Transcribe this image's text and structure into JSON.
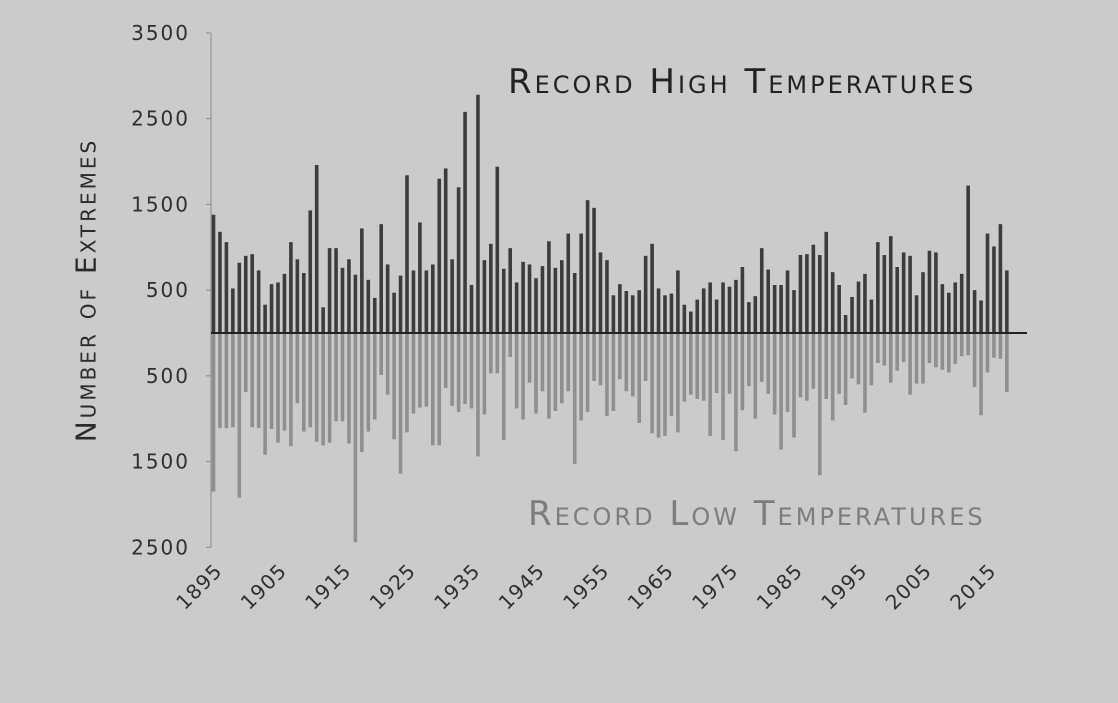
{
  "chart_data": {
    "type": "bar",
    "title_high": "Record High Temperatures",
    "title_low": "Record Low Temperatures",
    "ylabel": "Number of Extremes",
    "ylim": [
      -2500,
      3500
    ],
    "y_ticks": [
      {
        "value": 3500,
        "label": "3500"
      },
      {
        "value": 2500,
        "label": "2500"
      },
      {
        "value": 1500,
        "label": "1500"
      },
      {
        "value": 500,
        "label": "500"
      },
      {
        "value": -500,
        "label": "500"
      },
      {
        "value": -1500,
        "label": "1500"
      },
      {
        "value": -2500,
        "label": "2500"
      }
    ],
    "x_ticks": [
      "1895",
      "1905",
      "1915",
      "1925",
      "1935",
      "1945",
      "1955",
      "1965",
      "1975",
      "1985",
      "1995",
      "2005",
      "2015"
    ],
    "x_tick_years": [
      1895,
      1905,
      1915,
      1925,
      1935,
      1945,
      1955,
      1965,
      1975,
      1985,
      1995,
      2005,
      2015
    ],
    "colors": {
      "high": "#3c3c3c",
      "low": "#8f8f8f",
      "axis": "#222222",
      "tick_axis": "#888888"
    },
    "start_year": 1895,
    "series": [
      {
        "name": "Record High Temperatures",
        "values": [
          1380,
          1180,
          1060,
          520,
          820,
          900,
          920,
          730,
          330,
          570,
          590,
          690,
          1060,
          860,
          700,
          1430,
          1960,
          300,
          990,
          990,
          760,
          860,
          680,
          1220,
          620,
          410,
          1270,
          800,
          470,
          670,
          1840,
          730,
          1290,
          730,
          800,
          1800,
          1920,
          860,
          1700,
          2580,
          560,
          2780,
          850,
          1040,
          1940,
          750,
          990,
          590,
          830,
          800,
          640,
          780,
          1070,
          760,
          850,
          1160,
          700,
          1160,
          1550,
          1460,
          940,
          850,
          440,
          570,
          490,
          440,
          500,
          900,
          1040,
          520,
          440,
          460,
          730,
          330,
          250,
          390,
          520,
          590,
          390,
          590,
          540,
          620,
          770,
          360,
          430,
          990,
          740,
          560,
          560,
          730,
          500,
          910,
          920,
          1030,
          910,
          1180,
          710,
          560,
          210,
          420,
          600,
          690,
          390,
          1060,
          910,
          1130,
          770,
          940,
          900,
          440,
          710,
          960,
          940,
          570,
          470,
          590,
          690,
          1720,
          500,
          380,
          1160,
          1010,
          1270,
          730
        ]
      },
      {
        "name": "Record Low Temperatures",
        "values": [
          -1850,
          -1110,
          -1110,
          -1100,
          -1920,
          -690,
          -1100,
          -1110,
          -1420,
          -1120,
          -1280,
          -1140,
          -1320,
          -820,
          -1150,
          -1100,
          -1270,
          -1310,
          -1280,
          -1030,
          -1030,
          -1290,
          -2440,
          -1390,
          -1150,
          -1010,
          -490,
          -720,
          -1240,
          -1640,
          -1160,
          -940,
          -870,
          -860,
          -1310,
          -1310,
          -640,
          -850,
          -920,
          -830,
          -880,
          -1440,
          -950,
          -470,
          -470,
          -1250,
          -280,
          -880,
          -1010,
          -580,
          -940,
          -680,
          -1000,
          -910,
          -820,
          -680,
          -1530,
          -1020,
          -920,
          -560,
          -610,
          -970,
          -910,
          -540,
          -680,
          -740,
          -1050,
          -560,
          -1170,
          -1220,
          -1200,
          -970,
          -1160,
          -800,
          -720,
          -770,
          -790,
          -1200,
          -700,
          -1250,
          -710,
          -1380,
          -900,
          -620,
          -1000,
          -570,
          -710,
          -950,
          -1360,
          -920,
          -1220,
          -750,
          -790,
          -650,
          -1660,
          -770,
          -1020,
          -710,
          -840,
          -530,
          -600,
          -930,
          -610,
          -350,
          -380,
          -580,
          -440,
          -340,
          -720,
          -590,
          -590,
          -350,
          -400,
          -430,
          -460,
          -360,
          -270,
          -260,
          -630,
          -960,
          -460,
          -290,
          -300,
          -690
        ]
      }
    ]
  }
}
